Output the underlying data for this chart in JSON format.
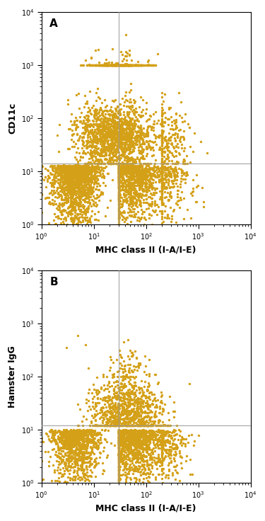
{
  "dot_color": "#D4A017",
  "background_color": "#FFFFFF",
  "xlim": [
    1,
    10000
  ],
  "ylim": [
    1,
    10000
  ],
  "xlabel": "MHC class II (I-A/I-E)",
  "ylabel_A": "CD11c",
  "ylabel_B": "Hamster IgG",
  "label_A": "A",
  "label_B": "B",
  "vline_x": 30,
  "hline_y_A": 14,
  "hline_y_B": 12,
  "dot_size": 6,
  "dot_alpha": 1.0,
  "n_points_A": 5000,
  "n_points_B": 3500,
  "line_color": "#999999",
  "tick_label_fontsize": 7,
  "axis_label_fontsize": 9,
  "panel_label_fontsize": 11
}
